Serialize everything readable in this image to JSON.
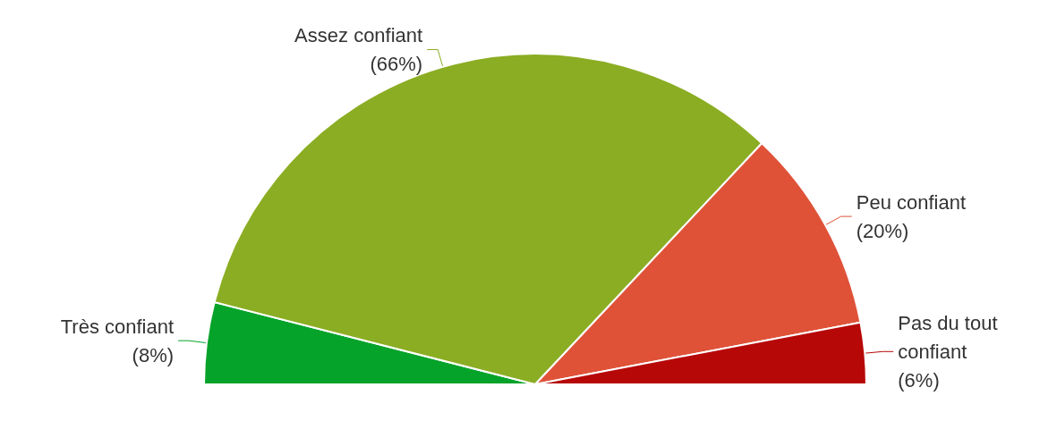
{
  "chart_data": {
    "type": "pie",
    "categories": [
      "Très confiant",
      "Assez confiant",
      "Peu confiant",
      "Pas du tout confiant"
    ],
    "values": [
      8,
      66,
      20,
      6
    ],
    "value_labels": [
      "(8%)",
      "(66%)",
      "(20%)",
      "(6%)"
    ],
    "colors": [
      "#05a32a",
      "#8bad23",
      "#df5238",
      "#b70808"
    ],
    "legend": false
  }
}
